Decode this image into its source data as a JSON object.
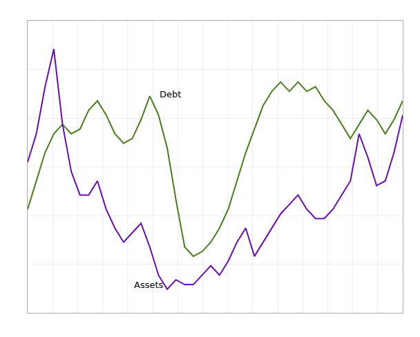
{
  "chart_data": {
    "type": "line",
    "x": [
      0,
      1,
      2,
      3,
      4,
      5,
      6,
      7,
      8,
      9,
      10,
      11,
      12,
      13,
      14,
      15,
      16,
      17,
      18,
      19,
      20,
      21,
      22,
      23,
      24,
      25,
      26,
      27,
      28,
      29,
      30,
      31,
      32,
      33,
      34,
      35,
      36,
      37,
      38,
      39,
      40,
      41,
      42,
      43
    ],
    "series": [
      {
        "color": "#4a7c1f",
        "values": [
          4.2,
          4.8,
          5.4,
          5.8,
          6.0,
          5.8,
          5.9,
          6.3,
          6.5,
          6.2,
          5.8,
          5.6,
          5.7,
          6.1,
          6.6,
          6.2,
          5.5,
          4.4,
          3.4,
          3.2,
          3.3,
          3.5,
          3.8,
          4.2,
          4.8,
          5.4,
          5.9,
          6.4,
          6.7,
          6.9,
          6.7,
          6.9,
          6.7,
          6.8,
          6.5,
          6.3,
          6.0,
          5.7,
          6.0,
          6.3,
          6.1,
          5.8,
          6.1,
          6.5
        ]
      },
      {
        "color": "#6a0dad",
        "values": [
          5.2,
          5.8,
          6.8,
          7.6,
          6.0,
          5.0,
          4.5,
          4.5,
          4.8,
          4.2,
          3.8,
          3.5,
          3.7,
          3.9,
          3.4,
          2.8,
          2.5,
          2.7,
          2.6,
          2.6,
          2.8,
          3.0,
          2.8,
          3.1,
          3.5,
          3.8,
          3.2,
          3.5,
          3.8,
          4.1,
          4.3,
          4.5,
          4.2,
          4.0,
          4.0,
          4.2,
          4.5,
          4.8,
          5.8,
          5.3,
          4.7,
          4.8,
          5.4,
          6.2
        ]
      }
    ],
    "annotations": [
      {
        "text": "Debt",
        "x": 15,
        "y": 6.5
      },
      {
        "text": "Assets",
        "x": 12,
        "y": 2.45
      }
    ],
    "xlim": [
      0,
      43
    ],
    "xticks": [
      0,
      2.8666666666666667,
      5.733333333333333,
      8.6,
      11.466666666666667,
      14.333333333333334,
      17.2,
      20.066666666666666,
      22.933333333333334,
      25.8,
      28.666666666666668,
      31.533333333333335,
      34.4,
      37.266666666666666,
      40.13333333333333,
      43
    ],
    "ylim": [
      2.0,
      8.2
    ],
    "yticks": [
      2.0,
      3.033333333333333,
      4.066666666666666,
      5.1,
      6.133333333333333,
      7.166666666666667,
      8.2
    ],
    "grid": true,
    "tick_labels": false
  }
}
